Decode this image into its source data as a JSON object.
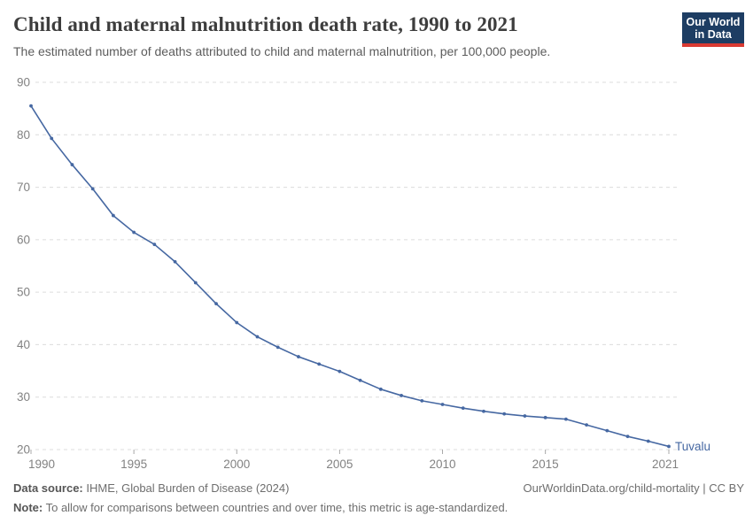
{
  "header": {
    "title": "Child and maternal malnutrition death rate, 1990 to 2021",
    "subtitle": "The estimated number of deaths attributed to child and maternal malnutrition, per 100,000 people.",
    "logo": {
      "line1": "Our World",
      "line2": "in Data"
    }
  },
  "chart_data": {
    "type": "line",
    "title": "Child and maternal malnutrition death rate, 1990 to 2021",
    "xlabel": "",
    "ylabel": "",
    "xlim": [
      1990,
      2021
    ],
    "ylim": [
      20,
      90
    ],
    "grid": true,
    "legend_position": "end-of-line-label",
    "x_ticks": [
      1990,
      1995,
      2000,
      2005,
      2010,
      2015,
      2021
    ],
    "y_ticks": [
      20,
      30,
      40,
      50,
      60,
      70,
      80,
      90
    ],
    "x": [
      1990,
      1991,
      1992,
      1993,
      1994,
      1995,
      1996,
      1997,
      1998,
      1999,
      2000,
      2001,
      2002,
      2003,
      2004,
      2005,
      2006,
      2007,
      2008,
      2009,
      2010,
      2011,
      2012,
      2013,
      2014,
      2015,
      2016,
      2017,
      2018,
      2019,
      2020,
      2021
    ],
    "series": [
      {
        "name": "Tuvalu",
        "color": "#4668a2",
        "values": [
          85.5,
          79.3,
          74.3,
          69.7,
          64.6,
          61.4,
          59.1,
          55.8,
          51.8,
          47.8,
          44.2,
          41.5,
          39.5,
          37.7,
          36.3,
          34.9,
          33.2,
          31.5,
          30.3,
          29.3,
          28.6,
          27.9,
          27.3,
          26.8,
          26.4,
          26.1,
          25.8,
          24.7,
          23.6,
          22.5,
          21.6,
          20.6
        ]
      }
    ]
  },
  "footer": {
    "source_label": "Data source:",
    "source_text": " IHME, Global Burden of Disease (2024)",
    "right_text": "OurWorldinData.org/child-mortality | CC BY",
    "note_label": "Note:",
    "note_text": " To allow for comparisons between countries and over time, this metric is age-standardized."
  },
  "colors": {
    "accent_blue": "#4668a2",
    "logo_navy": "#1d3d63",
    "logo_red": "#d93a32",
    "grid_line": "#dcdcdc",
    "axis_text": "#828282",
    "tick_mark": "#a8a8a8",
    "title_text": "#3d3d3d",
    "footer_text": "#6e6e6e"
  }
}
